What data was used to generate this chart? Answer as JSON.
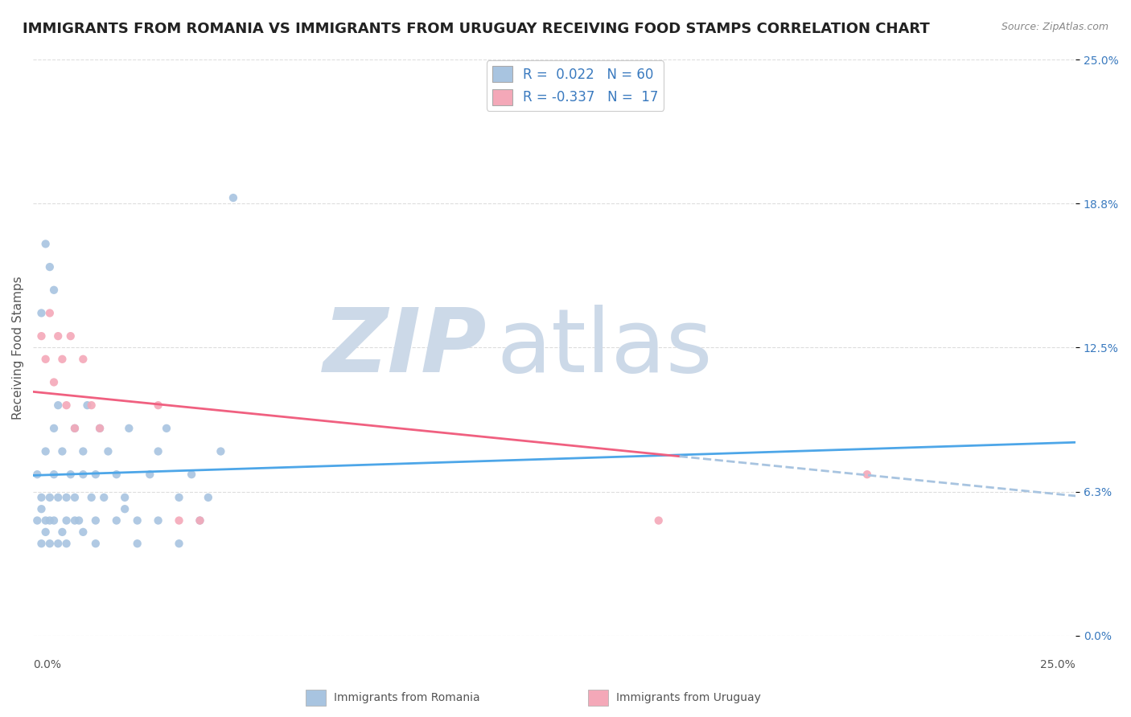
{
  "title": "IMMIGRANTS FROM ROMANIA VS IMMIGRANTS FROM URUGUAY RECEIVING FOOD STAMPS CORRELATION CHART",
  "source": "Source: ZipAtlas.com",
  "ylabel": "Receiving Food Stamps",
  "yticks": [
    0.0,
    0.0625,
    0.125,
    0.1875,
    0.25
  ],
  "ytick_labels": [
    "0.0%",
    "6.3%",
    "12.5%",
    "18.8%",
    "25.0%"
  ],
  "xmin": 0.0,
  "xmax": 0.25,
  "ymin": 0.0,
  "ymax": 0.25,
  "romania_color": "#a8c4e0",
  "uruguay_color": "#f4a8b8",
  "romania_line_color": "#4da6e8",
  "uruguay_line_color": "#f06080",
  "trend_dash_color": "#a8c4e0",
  "romania_R": 0.022,
  "romania_N": 60,
  "uruguay_R": -0.337,
  "uruguay_N": 17,
  "romania_scatter": [
    [
      0.001,
      0.07
    ],
    [
      0.002,
      0.06
    ],
    [
      0.002,
      0.055
    ],
    [
      0.003,
      0.05
    ],
    [
      0.003,
      0.08
    ],
    [
      0.004,
      0.06
    ],
    [
      0.004,
      0.05
    ],
    [
      0.005,
      0.09
    ],
    [
      0.005,
      0.07
    ],
    [
      0.006,
      0.1
    ],
    [
      0.006,
      0.06
    ],
    [
      0.007,
      0.08
    ],
    [
      0.008,
      0.05
    ],
    [
      0.008,
      0.06
    ],
    [
      0.009,
      0.07
    ],
    [
      0.01,
      0.09
    ],
    [
      0.01,
      0.06
    ],
    [
      0.011,
      0.05
    ],
    [
      0.012,
      0.08
    ],
    [
      0.012,
      0.07
    ],
    [
      0.013,
      0.1
    ],
    [
      0.014,
      0.06
    ],
    [
      0.015,
      0.07
    ],
    [
      0.015,
      0.05
    ],
    [
      0.016,
      0.09
    ],
    [
      0.017,
      0.06
    ],
    [
      0.018,
      0.08
    ],
    [
      0.02,
      0.07
    ],
    [
      0.022,
      0.06
    ],
    [
      0.023,
      0.09
    ],
    [
      0.025,
      0.05
    ],
    [
      0.028,
      0.07
    ],
    [
      0.03,
      0.08
    ],
    [
      0.032,
      0.09
    ],
    [
      0.035,
      0.06
    ],
    [
      0.038,
      0.07
    ],
    [
      0.04,
      0.05
    ],
    [
      0.042,
      0.06
    ],
    [
      0.045,
      0.08
    ],
    [
      0.048,
      0.19
    ],
    [
      0.001,
      0.05
    ],
    [
      0.002,
      0.04
    ],
    [
      0.003,
      0.045
    ],
    [
      0.004,
      0.04
    ],
    [
      0.005,
      0.05
    ],
    [
      0.006,
      0.04
    ],
    [
      0.007,
      0.045
    ],
    [
      0.008,
      0.04
    ],
    [
      0.01,
      0.05
    ],
    [
      0.012,
      0.045
    ],
    [
      0.015,
      0.04
    ],
    [
      0.02,
      0.05
    ],
    [
      0.022,
      0.055
    ],
    [
      0.025,
      0.04
    ],
    [
      0.03,
      0.05
    ],
    [
      0.035,
      0.04
    ],
    [
      0.002,
      0.14
    ],
    [
      0.003,
      0.17
    ],
    [
      0.004,
      0.16
    ],
    [
      0.005,
      0.15
    ]
  ],
  "uruguay_scatter": [
    [
      0.002,
      0.13
    ],
    [
      0.003,
      0.12
    ],
    [
      0.004,
      0.14
    ],
    [
      0.005,
      0.11
    ],
    [
      0.006,
      0.13
    ],
    [
      0.007,
      0.12
    ],
    [
      0.008,
      0.1
    ],
    [
      0.009,
      0.13
    ],
    [
      0.01,
      0.09
    ],
    [
      0.012,
      0.12
    ],
    [
      0.014,
      0.1
    ],
    [
      0.016,
      0.09
    ],
    [
      0.03,
      0.1
    ],
    [
      0.035,
      0.05
    ],
    [
      0.04,
      0.05
    ],
    [
      0.2,
      0.07
    ],
    [
      0.15,
      0.05
    ]
  ],
  "background_color": "#ffffff",
  "grid_color": "#dddddd",
  "title_fontsize": 13,
  "label_fontsize": 11,
  "tick_fontsize": 10,
  "watermark_color": "#ccd9e8"
}
